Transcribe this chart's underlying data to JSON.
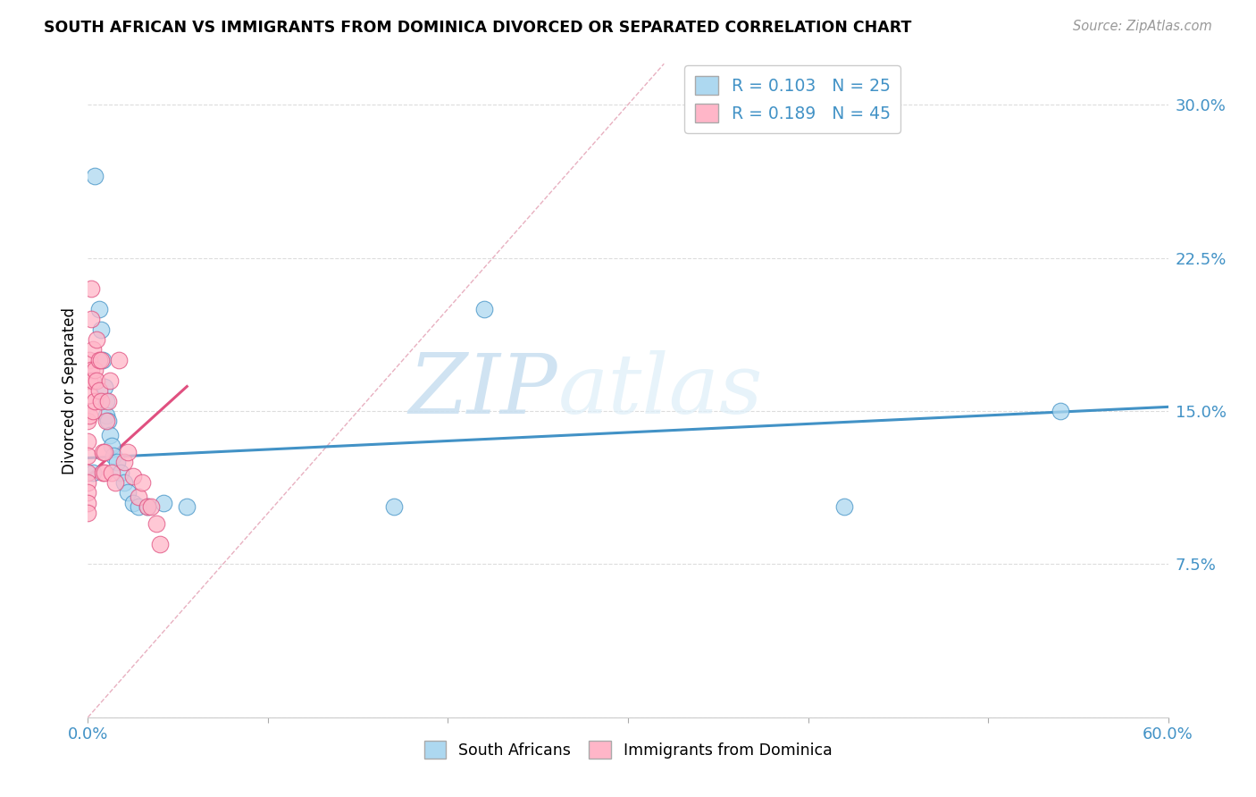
{
  "title": "SOUTH AFRICAN VS IMMIGRANTS FROM DOMINICA DIVORCED OR SEPARATED CORRELATION CHART",
  "source": "Source: ZipAtlas.com",
  "ylabel": "Divorced or Separated",
  "xmin": 0.0,
  "xmax": 0.6,
  "ymin": 0.0,
  "ymax": 0.32,
  "xticks": [
    0.0,
    0.1,
    0.2,
    0.3,
    0.4,
    0.5,
    0.6
  ],
  "xticklabels": [
    "0.0%",
    "",
    "",
    "",
    "",
    "",
    "60.0%"
  ],
  "yticks": [
    0.0,
    0.075,
    0.15,
    0.225,
    0.3
  ],
  "yticklabels": [
    "",
    "7.5%",
    "15.0%",
    "22.5%",
    "30.0%"
  ],
  "legend_r1": "R = 0.103",
  "legend_n1": "N = 25",
  "legend_r2": "R = 0.189",
  "legend_n2": "N = 45",
  "color_blue": "#add8f0",
  "color_pink": "#ffb6c8",
  "line_color_blue": "#4292c6",
  "line_color_pink": "#e05080",
  "diag_color": "#cccccc",
  "watermark_zip": "ZIP",
  "watermark_atlas": "atlas",
  "blue_line_x0": 0.0,
  "blue_line_y0": 0.127,
  "blue_line_x1": 0.6,
  "blue_line_y1": 0.152,
  "pink_line_x0": 0.0,
  "pink_line_y0": 0.118,
  "pink_line_x1": 0.055,
  "pink_line_y1": 0.162,
  "sa_x": [
    0.004,
    0.006,
    0.007,
    0.008,
    0.009,
    0.01,
    0.01,
    0.011,
    0.012,
    0.013,
    0.014,
    0.016,
    0.018,
    0.02,
    0.022,
    0.025,
    0.028,
    0.033,
    0.042,
    0.055,
    0.17,
    0.22,
    0.42,
    0.54,
    0.003
  ],
  "sa_y": [
    0.265,
    0.2,
    0.19,
    0.175,
    0.162,
    0.155,
    0.148,
    0.145,
    0.138,
    0.133,
    0.128,
    0.125,
    0.12,
    0.115,
    0.11,
    0.105,
    0.103,
    0.103,
    0.105,
    0.103,
    0.103,
    0.2,
    0.103,
    0.15,
    0.12
  ],
  "dom_x": [
    0.0,
    0.0,
    0.0,
    0.0,
    0.0,
    0.0,
    0.0,
    0.0,
    0.001,
    0.001,
    0.001,
    0.001,
    0.002,
    0.002,
    0.002,
    0.003,
    0.003,
    0.003,
    0.004,
    0.004,
    0.005,
    0.005,
    0.006,
    0.006,
    0.007,
    0.007,
    0.008,
    0.008,
    0.009,
    0.009,
    0.01,
    0.011,
    0.012,
    0.013,
    0.015,
    0.017,
    0.02,
    0.022,
    0.025,
    0.028,
    0.03,
    0.033,
    0.035,
    0.038,
    0.04
  ],
  "dom_y": [
    0.145,
    0.135,
    0.128,
    0.12,
    0.115,
    0.11,
    0.105,
    0.1,
    0.175,
    0.165,
    0.158,
    0.148,
    0.21,
    0.195,
    0.17,
    0.18,
    0.165,
    0.15,
    0.17,
    0.155,
    0.185,
    0.165,
    0.175,
    0.16,
    0.175,
    0.155,
    0.13,
    0.12,
    0.13,
    0.12,
    0.145,
    0.155,
    0.165,
    0.12,
    0.115,
    0.175,
    0.125,
    0.13,
    0.118,
    0.108,
    0.115,
    0.103,
    0.103,
    0.095,
    0.085
  ]
}
